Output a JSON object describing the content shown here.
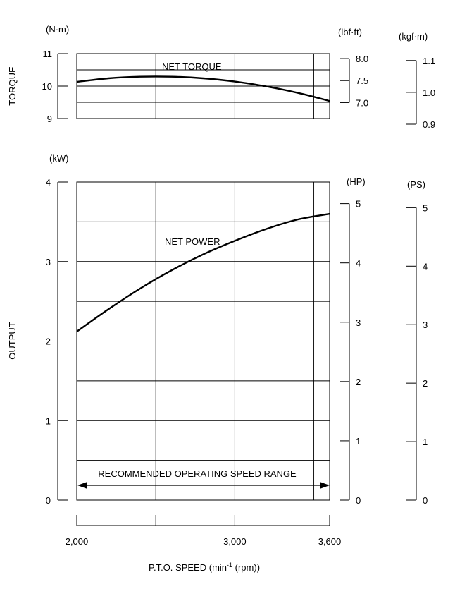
{
  "chart_data": {
    "type": "line",
    "xlabel": "P.T.O. SPEED",
    "xunit_main": "(min",
    "xunit_sup": "-1",
    "xunit_tail": " (rpm))",
    "x_ticks": [
      {
        "value": 2000,
        "label": "2,000"
      },
      {
        "value": 2500,
        "label": ""
      },
      {
        "value": 3000,
        "label": "3,000"
      },
      {
        "value": 3600,
        "label": "3,600"
      }
    ],
    "xlim": [
      2000,
      3600
    ],
    "range_annotation": "RECOMMENDED OPERATING SPEED RANGE",
    "torque_panel": {
      "ylabel": "TORQUE",
      "unit_left": "(N·m)",
      "ylim": [
        9,
        11
      ],
      "ticks_left": [
        "9",
        "10",
        "11"
      ],
      "unit_lbf": "(lbf·ft)",
      "ticks_lbf": [
        {
          "value": 7.0,
          "label": "7.0"
        },
        {
          "value": 7.5,
          "label": "7.5"
        },
        {
          "value": 8.0,
          "label": "8.0"
        }
      ],
      "unit_kgf": "(kgf·m)",
      "ticks_kgf": [
        {
          "value": 0.9,
          "label": "0.9"
        },
        {
          "value": 1.0,
          "label": "1.0"
        },
        {
          "value": 1.1,
          "label": "1.1"
        }
      ],
      "series": {
        "name": "NET TORQUE",
        "x": [
          2000,
          2200,
          2400,
          2600,
          2800,
          3000,
          3200,
          3400,
          3600
        ],
        "y": [
          10.13,
          10.24,
          10.29,
          10.29,
          10.24,
          10.14,
          9.99,
          9.79,
          9.54
        ]
      }
    },
    "output_panel": {
      "ylabel": "OUTPUT",
      "unit_left": "(kW)",
      "ylim": [
        0,
        4
      ],
      "ticks_left": [
        "0",
        "1",
        "2",
        "3",
        "4"
      ],
      "unit_hp": "(HP)",
      "ticks_hp": [
        "0",
        "1",
        "2",
        "3",
        "4",
        "5"
      ],
      "unit_ps": "(PS)",
      "ticks_ps": [
        "0",
        "1",
        "2",
        "3",
        "4",
        "5"
      ],
      "series": {
        "name": "NET POWER",
        "x": [
          2000,
          2200,
          2400,
          2600,
          2800,
          3000,
          3200,
          3400,
          3600
        ],
        "y": [
          2.12,
          2.4,
          2.66,
          2.89,
          3.09,
          3.26,
          3.41,
          3.53,
          3.6
        ]
      }
    }
  }
}
